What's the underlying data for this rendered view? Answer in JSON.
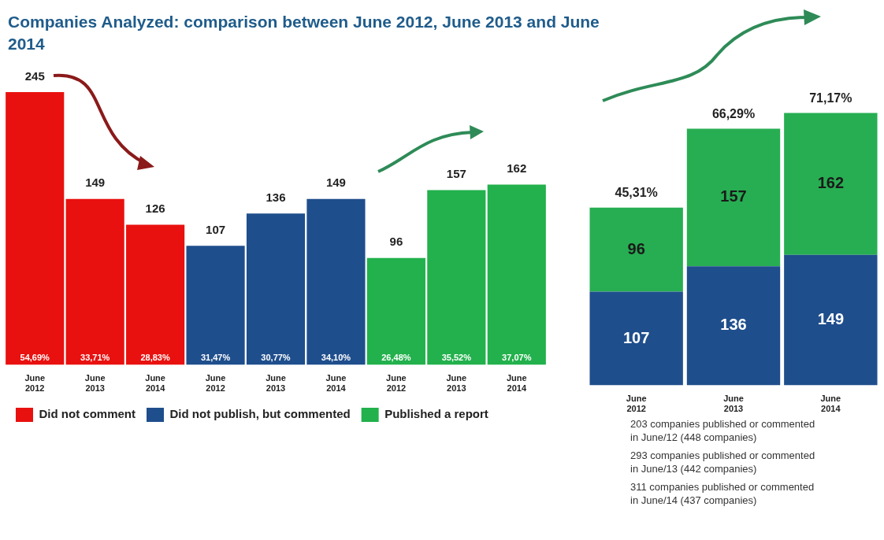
{
  "chart_data": [
    {
      "type": "bar",
      "title": "Companies Analyzed: comparison between June 2012,  June 2013 and June 2014",
      "categories": [
        "June 2012",
        "June 2013",
        "June 2014",
        "June 2012",
        "June 2013",
        "June 2014",
        "June 2012",
        "June 2013",
        "June 2014"
      ],
      "stacked": true,
      "legend": "bottom left",
      "tick_labels": "x",
      "series": [
        {
          "name": "Did not comment",
          "color": "#e8110f",
          "values": [
            245,
            149,
            126,
            null,
            null,
            null,
            null,
            null,
            null
          ],
          "value_labels": [
            "245",
            "149",
            "126",
            null,
            null,
            null,
            null,
            null,
            null
          ]
        },
        {
          "name": "Did not publish, but commented",
          "color": "#1f4e8c",
          "values": [
            null,
            null,
            null,
            107,
            136,
            149,
            null,
            null,
            null
          ],
          "value_labels": [
            null,
            null,
            null,
            "107",
            "136",
            "149",
            null,
            null,
            null
          ]
        },
        {
          "name": "Published a report",
          "color": "#22b14c",
          "values": [
            null,
            null,
            null,
            null,
            null,
            null,
            96,
            157,
            162
          ],
          "value_labels": [
            null,
            null,
            null,
            null,
            null,
            null,
            "96",
            "157",
            "162"
          ]
        }
      ],
      "annotations": [
        "54,69%",
        "33,71%",
        "28,83%",
        "31,47%",
        "30,77%",
        "34,10%",
        "26,48%",
        "35,52%",
        "37,07%"
      ]
    },
    {
      "type": "bar",
      "categories": [
        "June 2012",
        "June 2013",
        "June 2014"
      ],
      "stacked": true,
      "data_labels": true,
      "tick_labels": "x",
      "series": [
        {
          "color": "#1f4e8c",
          "values": [
            107,
            136,
            149
          ]
        },
        {
          "color": "#27ae52",
          "values": [
            96,
            157,
            162
          ]
        }
      ],
      "annotations": [
        {
          "text": "45,31%",
          "x": "June 2012",
          "y": 203
        },
        {
          "text": "66,29%",
          "x": "June 2013",
          "y": 293
        },
        {
          "text": "71,17%",
          "x": "June 2014",
          "y": 311
        },
        "203 companies published or commented in June/12 (448 companies)",
        "293 companies published or commented in June/13 (442 companies)",
        "311 companies published or commented in June/14 (437 companies)"
      ]
    }
  ]
}
